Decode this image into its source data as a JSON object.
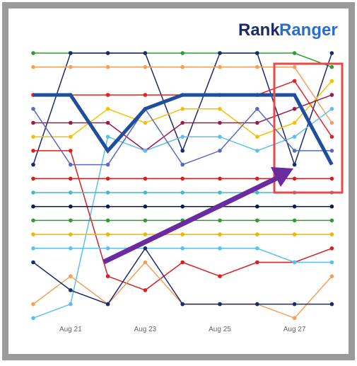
{
  "logo": {
    "first": "Rank",
    "second": "Ranger"
  },
  "chart_data": {
    "type": "line",
    "categories": [
      null,
      "Aug 21",
      null,
      "Aug 23",
      null,
      "Aug 25",
      null,
      "Aug 27",
      null
    ],
    "series": [
      {
        "color": "#2e9e32",
        "values": [
          1,
          1,
          1,
          1,
          1,
          1,
          1,
          1,
          2
        ]
      },
      {
        "color": "#1b2a6b",
        "values": [
          9,
          1,
          1,
          1,
          8,
          1,
          1,
          9,
          1
        ]
      },
      {
        "color": "#f3a05a",
        "values": [
          2,
          2,
          2,
          2,
          2,
          2,
          2,
          2,
          6
        ]
      },
      {
        "color": "#e02424",
        "values": [
          4,
          4,
          4,
          4,
          4,
          4,
          4,
          3,
          7
        ]
      },
      {
        "color": "#f5c000",
        "values": [
          7,
          7,
          5,
          6,
          5,
          5,
          7,
          6,
          3
        ]
      },
      {
        "color": "#9b1b4f",
        "values": [
          6,
          6,
          6,
          8,
          6,
          6,
          6,
          5,
          4
        ]
      },
      {
        "color": "#5bc0eb",
        "values": [
          20,
          19,
          7,
          8,
          7,
          7,
          8,
          7,
          5
        ]
      },
      {
        "color": "#d62020",
        "values": [
          8,
          8,
          17,
          18,
          16,
          17,
          16,
          16,
          15
        ]
      },
      {
        "color": "#5a6bbd",
        "values": [
          5,
          9,
          9,
          5,
          9,
          8,
          5,
          8,
          8
        ]
      },
      {
        "color": "#d62020",
        "values": [
          10,
          10,
          10,
          10,
          10,
          10,
          10,
          10,
          10
        ]
      },
      {
        "color": "#45b8d0",
        "values": [
          11,
          11,
          11,
          11,
          11,
          11,
          11,
          11,
          11
        ]
      },
      {
        "color": "#0a1a5a",
        "values": [
          12,
          12,
          12,
          12,
          12,
          12,
          12,
          12,
          12
        ]
      },
      {
        "color": "#2e9e32",
        "values": [
          13,
          13,
          13,
          13,
          13,
          13,
          13,
          13,
          13
        ]
      },
      {
        "color": "#f5b400",
        "values": [
          14,
          14,
          14,
          14,
          14,
          14,
          14,
          14,
          14
        ]
      },
      {
        "color": "#5bc0eb",
        "values": [
          15,
          15,
          15,
          15,
          15,
          15,
          15,
          16,
          16
        ]
      },
      {
        "color": "#f3a05a",
        "values": [
          19,
          17,
          19,
          16,
          19,
          19,
          19,
          20,
          17
        ]
      },
      {
        "color": "#1b2a6b",
        "values": [
          16,
          18,
          19,
          15,
          19,
          19,
          19,
          19,
          19
        ]
      },
      {
        "color": "#1f4e9c",
        "values": [
          4,
          4,
          8,
          5,
          4,
          4,
          4,
          4,
          9
        ]
      }
    ]
  }
}
